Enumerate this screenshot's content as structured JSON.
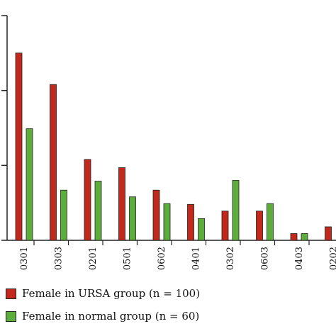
{
  "chart_data": {
    "type": "bar",
    "categories": [
      "0301",
      "0303",
      "0201",
      "0501",
      "0602",
      "0401",
      "0302",
      "0603",
      "0403",
      "0202"
    ],
    "series": [
      {
        "name": "Female in URSA group (n = 100)",
        "color": "#c0291c",
        "values": [
          0.25,
          0.208,
          0.108,
          0.097,
          0.067,
          0.048,
          0.039,
          0.039,
          0.009,
          0.018
        ]
      },
      {
        "name": "Female in normal group (n = 60)",
        "color": "#5cad3c",
        "values": [
          0.149,
          0.067,
          0.079,
          0.058,
          0.049,
          0.029,
          0.08,
          0.049,
          0.009,
          null
        ]
      }
    ],
    "ylim": [
      0,
      0.3
    ],
    "yticks": [
      0,
      0.1,
      0.2,
      0.3
    ],
    "title": "",
    "xlabel": "",
    "ylabel": "",
    "legend_placement": "bottom-left",
    "grid": false
  }
}
